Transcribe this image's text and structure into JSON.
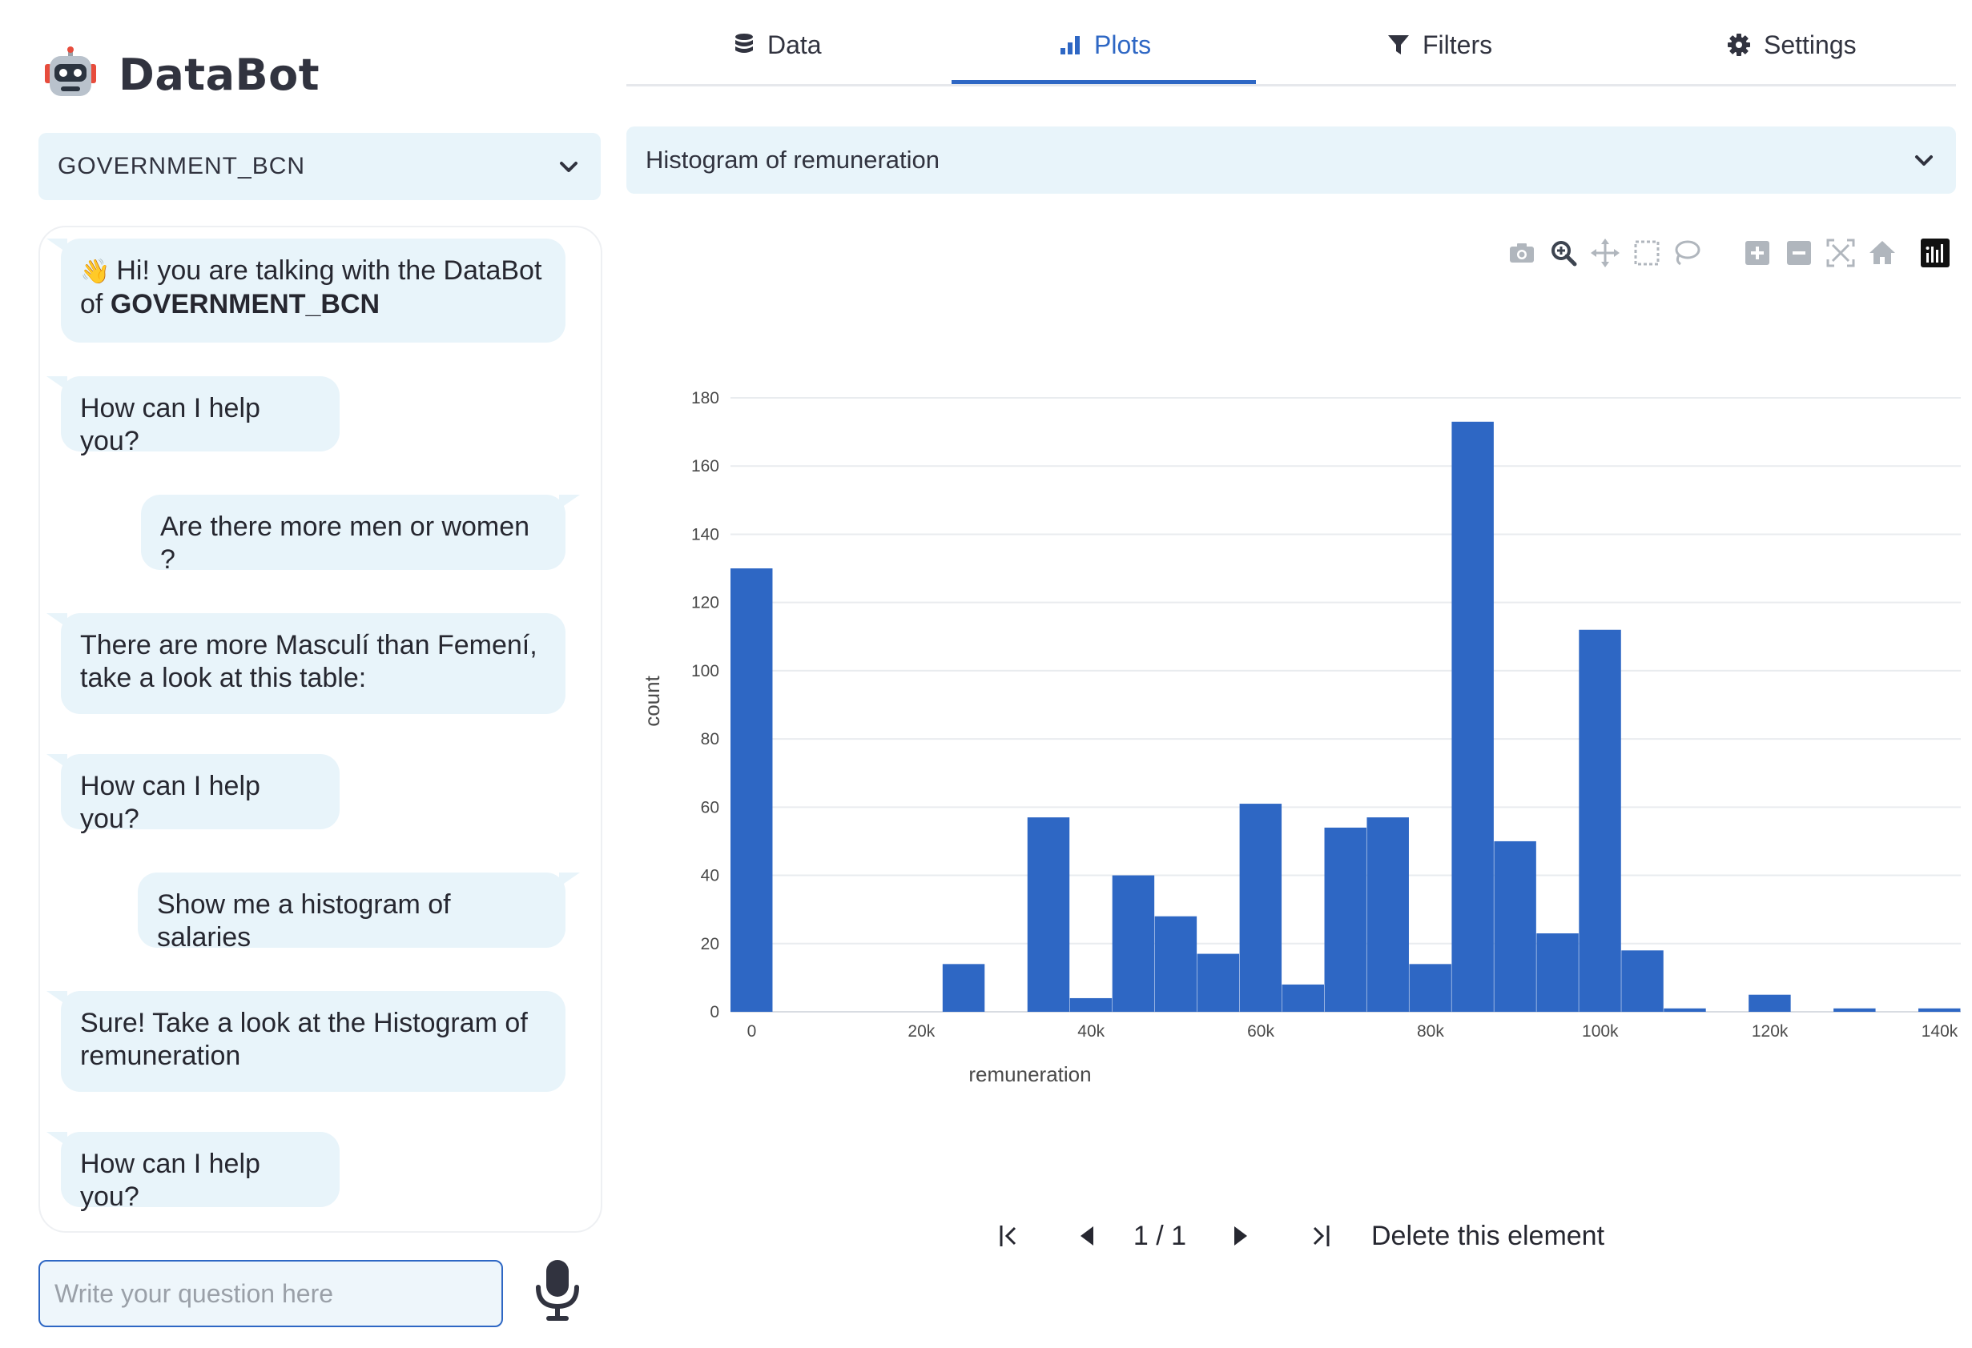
{
  "app": {
    "title": "DataBot"
  },
  "dataset_select": {
    "value": "GOVERNMENT_BCN"
  },
  "chat": {
    "greeting_emoji": "👋",
    "greeting_text": "Hi! you are talking with the DataBot of ",
    "greeting_bold": "GOVERNMENT_BCN",
    "messages": [
      {
        "role": "bot",
        "text": "How can I help you?"
      },
      {
        "role": "user",
        "text": "Are there more men or women ?"
      },
      {
        "role": "bot",
        "text": "There are more Masculí than Femení, take a look at this table:"
      },
      {
        "role": "bot",
        "text": "How can I help you?"
      },
      {
        "role": "user",
        "text": "Show me a histogram of salaries"
      },
      {
        "role": "bot",
        "text": "Sure! Take a look at the Histogram of remuneration"
      },
      {
        "role": "bot",
        "text": "How can I help you?"
      }
    ],
    "input_placeholder": "Write your question here"
  },
  "tabs": [
    {
      "label": "Data",
      "icon": "database-icon",
      "active": false
    },
    {
      "label": "Plots",
      "icon": "bar-chart-icon",
      "active": true
    },
    {
      "label": "Filters",
      "icon": "filter-icon",
      "active": false
    },
    {
      "label": "Settings",
      "icon": "gear-icon",
      "active": false
    }
  ],
  "plot_select": {
    "value": "Histogram of remuneration"
  },
  "modebar": [
    "camera-icon",
    "zoom-icon",
    "pan-icon",
    "box-select-icon",
    "lasso-icon",
    "zoom-in-icon",
    "zoom-out-icon",
    "autoscale-icon",
    "home-icon",
    "plotly-logo-icon"
  ],
  "colors": {
    "accent": "#2e67c4",
    "bar": "#2e67c4",
    "bubble": "#e8f4fa"
  },
  "chart_data": {
    "type": "bar",
    "xlabel": "remuneration",
    "ylabel": "count",
    "ylim": [
      0,
      180
    ],
    "xlim": [
      -2500,
      142500
    ],
    "yticks": [
      0,
      20,
      40,
      60,
      80,
      100,
      120,
      140,
      160,
      180
    ],
    "xticks": [
      0,
      20000,
      40000,
      60000,
      80000,
      100000,
      120000,
      140000
    ],
    "xtick_labels": [
      "0",
      "20k",
      "40k",
      "60k",
      "80k",
      "100k",
      "120k",
      "140k"
    ],
    "grid": true,
    "bin_width": 5000,
    "bin_starts": [
      -2500,
      2500,
      7500,
      12500,
      17500,
      22500,
      27500,
      32500,
      37500,
      42500,
      47500,
      52500,
      57500,
      62500,
      67500,
      72500,
      77500,
      82500,
      87500,
      92500,
      97500,
      102500,
      107500,
      112500,
      117500,
      122500,
      127500,
      132500,
      137500
    ],
    "values": [
      130,
      0,
      0,
      0,
      0,
      14,
      0,
      57,
      4,
      40,
      28,
      17,
      61,
      8,
      54,
      57,
      14,
      173,
      50,
      23,
      112,
      18,
      1,
      0,
      5,
      0,
      1,
      0,
      1
    ]
  },
  "pager": {
    "first": "|<",
    "prev": "◀",
    "page": "1 / 1",
    "next": "▶",
    "last": ">|",
    "delete": "Delete this element"
  }
}
